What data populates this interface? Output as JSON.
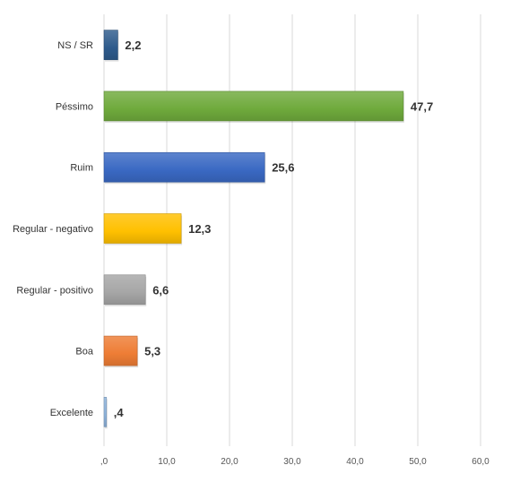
{
  "chart_data": {
    "type": "bar",
    "orientation": "horizontal",
    "categories": [
      "NS / SR",
      "Péssimo",
      "Ruim",
      "Regular - negativo",
      "Regular - positivo",
      "Boa",
      "Excelente"
    ],
    "values": [
      2.2,
      47.7,
      25.6,
      12.3,
      6.6,
      5.3,
      0.4
    ],
    "value_labels": [
      "2,2",
      "47,7",
      "25,6",
      "12,3",
      "6,6",
      "5,3",
      ",4"
    ],
    "colors": [
      "#2e5b8c",
      "#6faa3c",
      "#3a69c3",
      "#ffc000",
      "#a6a6a6",
      "#ee7d35",
      "#8fb4dc"
    ],
    "xlim": [
      0,
      60
    ],
    "xticks": [
      0,
      10,
      20,
      30,
      40,
      50,
      60
    ],
    "xtick_labels": [
      ",0",
      "10,0",
      "20,0",
      "30,0",
      "40,0",
      "50,0",
      "60,0"
    ],
    "grid": true,
    "legend": false
  }
}
